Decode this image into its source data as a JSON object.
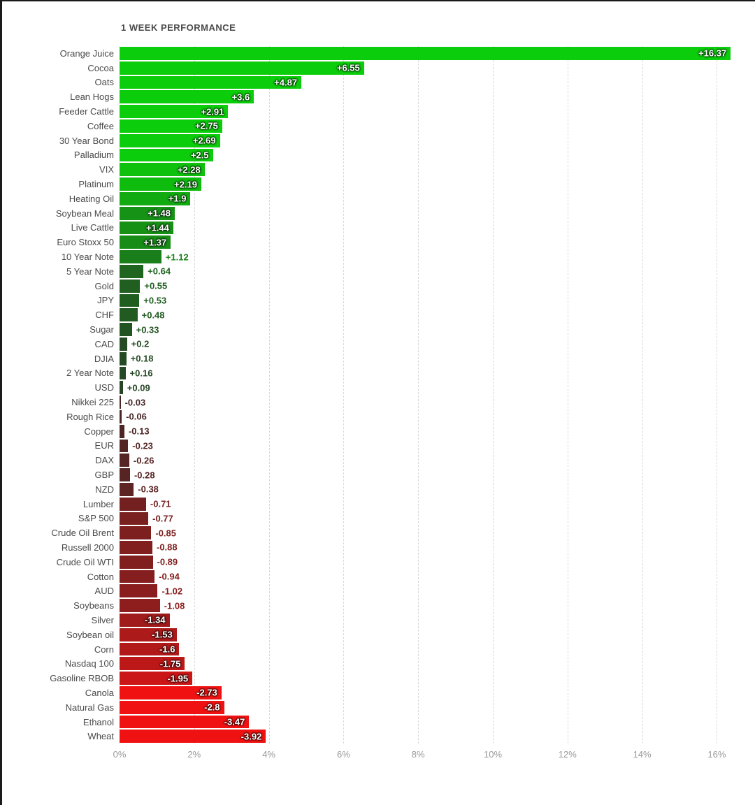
{
  "chart_data": {
    "type": "bar",
    "orientation": "horizontal",
    "title": "1 WEEK PERFORMANCE",
    "unit": "%",
    "xlabel": "",
    "ylabel": "",
    "xlim": [
      0,
      16.9
    ],
    "grid": "dashed-vertical",
    "legend": "none",
    "x_ticks": [
      "0%",
      "2%",
      "4%",
      "6%",
      "8%",
      "10%",
      "12%",
      "14%",
      "16%"
    ],
    "x_tick_values": [
      0,
      2,
      4,
      6,
      8,
      10,
      12,
      14,
      16
    ],
    "note": "bar length encodes absolute value of weekly % change; color encodes sign and magnitude",
    "items": [
      {
        "label": "Orange Juice",
        "value": 16.37,
        "display": "+16.37",
        "color": "#0BCD0B"
      },
      {
        "label": "Cocoa",
        "value": 6.55,
        "display": "+6.55",
        "color": "#0BCD0B"
      },
      {
        "label": "Oats",
        "value": 4.87,
        "display": "+4.87",
        "color": "#0BCD0B"
      },
      {
        "label": "Lean Hogs",
        "value": 3.6,
        "display": "+3.6",
        "color": "#0BCD0B"
      },
      {
        "label": "Feeder Cattle",
        "value": 2.91,
        "display": "+2.91",
        "color": "#0BCD0B"
      },
      {
        "label": "Coffee",
        "value": 2.75,
        "display": "+2.75",
        "color": "#0BCD0B"
      },
      {
        "label": "30 Year Bond",
        "value": 2.69,
        "display": "+2.69",
        "color": "#0BCD0B"
      },
      {
        "label": "Palladium",
        "value": 2.5,
        "display": "+2.5",
        "color": "#0BCD0B"
      },
      {
        "label": "VIX",
        "value": 2.28,
        "display": "+2.28",
        "color": "#0DC10D"
      },
      {
        "label": "Platinum",
        "value": 2.19,
        "display": "+2.19",
        "color": "#0EBC0E"
      },
      {
        "label": "Heating Oil",
        "value": 1.9,
        "display": "+1.9",
        "color": "#11AB11"
      },
      {
        "label": "Soybean Meal",
        "value": 1.48,
        "display": "+1.48",
        "color": "#169316"
      },
      {
        "label": "Live Cattle",
        "value": 1.44,
        "display": "+1.44",
        "color": "#169116"
      },
      {
        "label": "Euro Stoxx 50",
        "value": 1.37,
        "display": "+1.37",
        "color": "#178D17"
      },
      {
        "label": "10 Year Note",
        "value": 1.12,
        "display": "+1.12",
        "color": "#1A7F1A"
      },
      {
        "label": "5 Year Note",
        "value": 0.64,
        "display": "+0.64",
        "color": "#1F641F"
      },
      {
        "label": "Gold",
        "value": 0.55,
        "display": "+0.55",
        "color": "#205F20"
      },
      {
        "label": "JPY",
        "value": 0.53,
        "display": "+0.53",
        "color": "#205E20"
      },
      {
        "label": "CHF",
        "value": 0.48,
        "display": "+0.48",
        "color": "#215B21"
      },
      {
        "label": "Sugar",
        "value": 0.33,
        "display": "+0.33",
        "color": "#225322"
      },
      {
        "label": "CAD",
        "value": 0.2,
        "display": "+0.2",
        "color": "#244B24"
      },
      {
        "label": "DJIA",
        "value": 0.18,
        "display": "+0.18",
        "color": "#244A24"
      },
      {
        "label": "2 Year Note",
        "value": 0.16,
        "display": "+0.16",
        "color": "#244924"
      },
      {
        "label": "USD",
        "value": 0.09,
        "display": "+0.09",
        "color": "#254525"
      },
      {
        "label": "Nikkei 225",
        "value": -0.03,
        "display": "-0.03",
        "color": "#462626"
      },
      {
        "label": "Rough Rice",
        "value": -0.06,
        "display": "-0.06",
        "color": "#482626"
      },
      {
        "label": "Copper",
        "value": -0.13,
        "display": "-0.13",
        "color": "#4D2525"
      },
      {
        "label": "EUR",
        "value": -0.23,
        "display": "-0.23",
        "color": "#542424"
      },
      {
        "label": "DAX",
        "value": -0.26,
        "display": "-0.26",
        "color": "#562424"
      },
      {
        "label": "GBP",
        "value": -0.28,
        "display": "-0.28",
        "color": "#572424"
      },
      {
        "label": "NZD",
        "value": -0.38,
        "display": "-0.38",
        "color": "#5E2323"
      },
      {
        "label": "Lumber",
        "value": -0.71,
        "display": "-0.71",
        "color": "#752020"
      },
      {
        "label": "S&P 500",
        "value": -0.77,
        "display": "-0.77",
        "color": "#792020"
      },
      {
        "label": "Crude Oil Brent",
        "value": -0.85,
        "display": "-0.85",
        "color": "#7E1F1F"
      },
      {
        "label": "Russell 2000",
        "value": -0.88,
        "display": "-0.88",
        "color": "#811F1F"
      },
      {
        "label": "Crude Oil WTI",
        "value": -0.89,
        "display": "-0.89",
        "color": "#811F1F"
      },
      {
        "label": "Cotton",
        "value": -0.94,
        "display": "-0.94",
        "color": "#851E1E"
      },
      {
        "label": "AUD",
        "value": -1.02,
        "display": "-1.02",
        "color": "#8A1E1E"
      },
      {
        "label": "Soybeans",
        "value": -1.08,
        "display": "-1.08",
        "color": "#8E1D1D"
      },
      {
        "label": "Silver",
        "value": -1.34,
        "display": "-1.34",
        "color": "#A01B1B"
      },
      {
        "label": "Soybean oil",
        "value": -1.53,
        "display": "-1.53",
        "color": "#AD1A1A"
      },
      {
        "label": "Corn",
        "value": -1.6,
        "display": "-1.6",
        "color": "#B21919"
      },
      {
        "label": "Nasdaq 100",
        "value": -1.75,
        "display": "-1.75",
        "color": "#BC1818"
      },
      {
        "label": "Gasoline RBOB",
        "value": -1.95,
        "display": "-1.95",
        "color": "#CA1616"
      },
      {
        "label": "Canola",
        "value": -2.73,
        "display": "-2.73",
        "color": "#F01212"
      },
      {
        "label": "Natural Gas",
        "value": -2.8,
        "display": "-2.8",
        "color": "#F01212"
      },
      {
        "label": "Ethanol",
        "value": -3.47,
        "display": "-3.47",
        "color": "#F01212"
      },
      {
        "label": "Wheat",
        "value": -3.92,
        "display": "-3.92",
        "color": "#F01212"
      }
    ]
  },
  "colors": {
    "positive_bright": "#0BCD0B",
    "negative_bright": "#F01212",
    "title_text": "#4A4A4A",
    "category_text": "#4A4A4A",
    "axis_text": "#999999",
    "grid": "#D9D9D9",
    "value_inside_text": "#FFFFFF",
    "frame_border": "#1A1A1A",
    "background": "#FFFFFF"
  }
}
